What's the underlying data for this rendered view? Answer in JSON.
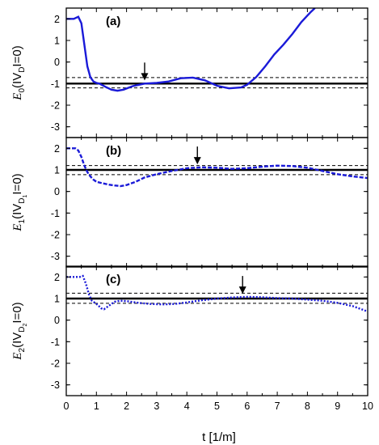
{
  "figure": {
    "xlabel": "t [1/m]",
    "colors": {
      "curve": "#1a1ad8",
      "lines": "#000000"
    }
  },
  "chart_data": [
    {
      "type": "line",
      "panel_label": "(a)",
      "ylabel": {
        "prefix": "E",
        "sub": "0",
        "mid": "(IV",
        "sub2": "D",
        "sub3": "",
        "suffix": "I=0)"
      },
      "xlim": [
        0,
        10
      ],
      "ylim": [
        -3.5,
        2.5
      ],
      "xticks": [
        0,
        1,
        2,
        3,
        4,
        5,
        6,
        7,
        8,
        9,
        10
      ],
      "yticks": [
        -3,
        -2,
        -1,
        0,
        1,
        2
      ],
      "reference_line": -1.0,
      "band_lines": [
        -0.72,
        -1.2
      ],
      "arrow_x": 2.6,
      "series": [
        {
          "style": "solid",
          "x": [
            0,
            0.25,
            0.4,
            0.5,
            0.6,
            0.7,
            0.8,
            0.9,
            1.0,
            1.1,
            1.3,
            1.5,
            1.7,
            1.9,
            2.2,
            2.6,
            3.0,
            3.4,
            3.8,
            4.2,
            4.6,
            5.0,
            5.4,
            5.8,
            6.0,
            6.3,
            6.6,
            6.9,
            7.2,
            7.5,
            7.8,
            8.1,
            8.25
          ],
          "y": [
            2.0,
            2.0,
            2.1,
            1.8,
            0.8,
            -0.2,
            -0.7,
            -0.9,
            -0.97,
            -1.0,
            -1.15,
            -1.28,
            -1.33,
            -1.28,
            -1.12,
            -1.0,
            -0.97,
            -0.9,
            -0.75,
            -0.72,
            -0.85,
            -1.1,
            -1.22,
            -1.18,
            -1.05,
            -0.7,
            -0.2,
            0.35,
            0.8,
            1.3,
            1.85,
            2.3,
            2.5
          ]
        }
      ]
    },
    {
      "type": "line",
      "panel_label": "(b)",
      "ylabel": {
        "prefix": "E",
        "sub": "1",
        "mid": "(IV",
        "sub2": "D",
        "sub3": "1",
        "suffix": "I=0)"
      },
      "xlim": [
        0,
        10
      ],
      "ylim": [
        -3.5,
        2.5
      ],
      "xticks": [
        0,
        1,
        2,
        3,
        4,
        5,
        6,
        7,
        8,
        9,
        10
      ],
      "yticks": [
        -3,
        -2,
        -1,
        0,
        1,
        2
      ],
      "reference_line": 1.0,
      "band_lines": [
        1.2,
        0.78
      ],
      "arrow_x": 4.35,
      "series": [
        {
          "style": "dashed",
          "x": [
            0,
            0.3,
            0.4,
            0.5,
            0.6,
            0.7,
            0.8,
            0.9,
            1.0,
            1.2,
            1.4,
            1.6,
            1.8,
            2.0,
            2.3,
            2.6,
            3.0,
            3.5,
            4.0,
            4.5,
            5.0,
            5.5,
            6.0,
            6.5,
            7.0,
            7.5,
            8.0,
            8.5,
            9.0,
            9.5,
            10.0
          ],
          "y": [
            2.0,
            2.0,
            1.9,
            1.6,
            1.2,
            0.9,
            0.7,
            0.55,
            0.45,
            0.38,
            0.32,
            0.28,
            0.25,
            0.3,
            0.45,
            0.65,
            0.8,
            0.95,
            1.08,
            1.12,
            1.1,
            1.05,
            1.08,
            1.15,
            1.2,
            1.18,
            1.1,
            0.95,
            0.8,
            0.7,
            0.62
          ]
        }
      ]
    },
    {
      "type": "line",
      "panel_label": "(c)",
      "ylabel": {
        "prefix": "E",
        "sub": "2",
        "mid": "(IV",
        "sub2": "D",
        "sub3": "2",
        "suffix": "I=0)"
      },
      "xlim": [
        0,
        10
      ],
      "ylim": [
        -3.5,
        2.5
      ],
      "xticks": [
        0,
        1,
        2,
        3,
        4,
        5,
        6,
        7,
        8,
        9,
        10
      ],
      "yticks": [
        -3,
        -2,
        -1,
        0,
        1,
        2
      ],
      "reference_line": 1.0,
      "band_lines": [
        1.25,
        0.78
      ],
      "arrow_x": 5.85,
      "series": [
        {
          "style": "dotted",
          "x": [
            0,
            0.45,
            0.55,
            0.65,
            0.75,
            0.85,
            0.95,
            1.05,
            1.15,
            1.25,
            1.4,
            1.6,
            1.8,
            2.0,
            2.4,
            2.8,
            3.2,
            3.6,
            4.0,
            4.5,
            5.0,
            5.5,
            6.0,
            6.5,
            7.0,
            7.5,
            8.0,
            8.5,
            9.0,
            9.5,
            10.0
          ],
          "y": [
            2.0,
            2.0,
            2.05,
            1.7,
            1.2,
            0.9,
            0.8,
            0.7,
            0.55,
            0.5,
            0.65,
            0.85,
            0.9,
            0.88,
            0.8,
            0.75,
            0.73,
            0.75,
            0.82,
            0.92,
            1.0,
            1.05,
            1.08,
            1.06,
            1.02,
            1.0,
            0.95,
            0.9,
            0.8,
            0.65,
            0.4
          ]
        }
      ]
    }
  ]
}
